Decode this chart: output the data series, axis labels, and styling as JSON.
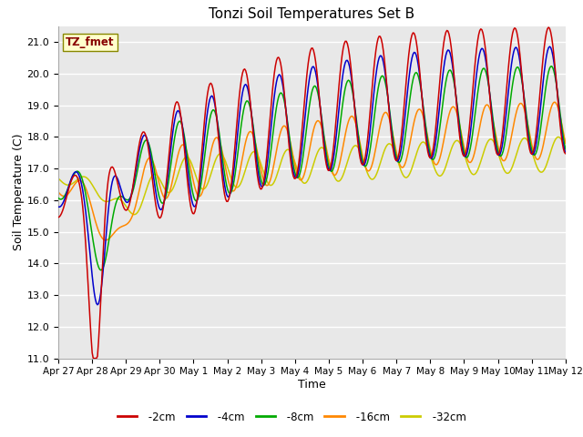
{
  "title": "Tonzi Soil Temperatures Set B",
  "xlabel": "Time",
  "ylabel": "Soil Temperature (C)",
  "ylim": [
    11.0,
    21.5
  ],
  "yticks": [
    11.0,
    12.0,
    13.0,
    14.0,
    15.0,
    16.0,
    17.0,
    18.0,
    19.0,
    20.0,
    21.0
  ],
  "fig_bg_color": "#ffffff",
  "ax_bg_color": "#e8e8e8",
  "legend_label": "TZ_fmet",
  "series_colors": {
    "-2cm": "#cc0000",
    "-4cm": "#0000cc",
    "-8cm": "#00aa00",
    "-16cm": "#ff8800",
    "-32cm": "#cccc00"
  },
  "xtick_labels": [
    "Apr 27",
    "Apr 28",
    "Apr 29",
    "Apr 30",
    "May 1",
    "May 2",
    "May 3",
    "May 4",
    "May 5",
    "May 6",
    "May 7",
    "May 8",
    "May 9",
    "May 10",
    "May 11",
    "May 12"
  ],
  "n_points": 480
}
